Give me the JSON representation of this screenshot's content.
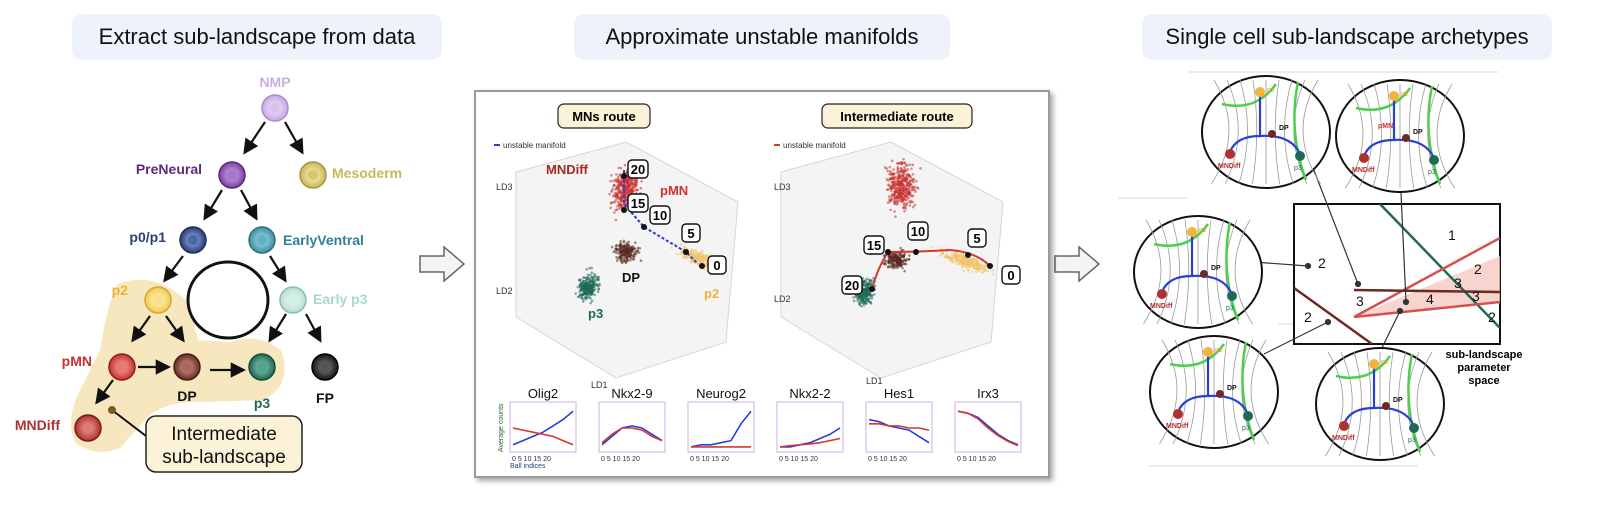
{
  "headers": {
    "left": "Extract sub-landscape from data",
    "middle": "Approximate unstable manifolds",
    "right": "Single cell sub-landscape archetypes"
  },
  "tree": {
    "nmp": "NMP",
    "preneural": "PreNeural",
    "mesoderm": "Mesoderm",
    "p0p1": "p0/p1",
    "earlyventral": "EarlyVentral",
    "p2": "p2",
    "earlyp3": "Early p3",
    "pmn": "pMN",
    "dp": "DP",
    "p3": "p3",
    "fp": "FP",
    "mndiff": "MNDiff",
    "intermediate_line1": "Intermediate",
    "intermediate_line2": "sub-landscape"
  },
  "middle": {
    "mns_title": "MNs route",
    "int_title": "Intermediate route",
    "legend": "unstable manifold",
    "mns_labels": {
      "mndiff": "MNDiff",
      "pmn": "pMN",
      "dp": "DP",
      "p2": "p2",
      "p3": "p3"
    },
    "mns_balls": [
      "20",
      "15",
      "10",
      "5",
      "0"
    ],
    "int_balls": [
      "10",
      "5",
      "15",
      "20",
      "0"
    ],
    "axes": {
      "ld1": "LD1",
      "ld2": "LD2",
      "ld3": "LD3"
    },
    "gene_titles": [
      "Olig2",
      "Nkx2-9",
      "Neurog2",
      "Nkx2-2",
      "Hes1",
      "Irx3"
    ],
    "ylabel": "Average counts",
    "xlabel": "Ball indices",
    "xticks": "0  5 10 15 20"
  },
  "right": {
    "param_regions": [
      "1",
      "2",
      "2",
      "3",
      "3",
      "4",
      "3",
      "2",
      "2"
    ],
    "param_caption_1": "sub-landscape",
    "param_caption_2": "parameter",
    "param_caption_3": "space",
    "land_labels": {
      "p2": "p2",
      "dp": "DP",
      "mndiff": "MNDiff",
      "p3": "p3",
      "pmn": "pMN"
    }
  },
  "colors": {
    "p2": "#f2b43a",
    "pmn": "#c9312f",
    "dp": "#6b2a22",
    "p3": "#1f6a57",
    "mndiff": "#b03030",
    "manifold_blue": "#2a3fd6",
    "manifold_red": "#d23a2a",
    "green": "#4cd04c"
  }
}
